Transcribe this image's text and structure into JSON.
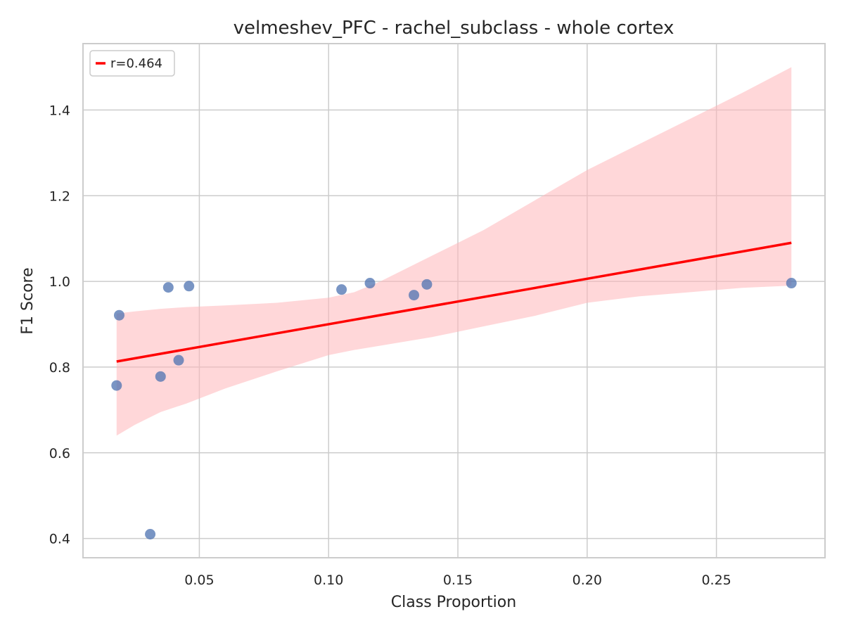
{
  "chart_data": {
    "type": "scatter",
    "title": "velmeshev_PFC - rachel_subclass - whole cortex",
    "xlabel": "Class Proportion",
    "ylabel": "F1 Score",
    "xlim": [
      0.005,
      0.292
    ],
    "ylim": [
      0.355,
      1.555
    ],
    "xticks": [
      0.05,
      0.1,
      0.15,
      0.2,
      0.25
    ],
    "xtick_labels": [
      "0.05",
      "0.10",
      "0.15",
      "0.20",
      "0.25"
    ],
    "yticks": [
      0.4,
      0.6,
      0.8,
      1.0,
      1.2,
      1.4
    ],
    "ytick_labels": [
      "0.4",
      "0.6",
      "0.8",
      "1.0",
      "1.2",
      "1.4"
    ],
    "grid": true,
    "legend": {
      "position": "top-left",
      "label": "r=0.464"
    },
    "points": [
      {
        "x": 0.018,
        "y": 0.757
      },
      {
        "x": 0.019,
        "y": 0.921
      },
      {
        "x": 0.031,
        "y": 0.41
      },
      {
        "x": 0.035,
        "y": 0.778
      },
      {
        "x": 0.038,
        "y": 0.986
      },
      {
        "x": 0.042,
        "y": 0.816
      },
      {
        "x": 0.046,
        "y": 0.989
      },
      {
        "x": 0.105,
        "y": 0.981
      },
      {
        "x": 0.116,
        "y": 0.996
      },
      {
        "x": 0.133,
        "y": 0.968
      },
      {
        "x": 0.138,
        "y": 0.993
      },
      {
        "x": 0.279,
        "y": 0.996
      }
    ],
    "regression_line": {
      "x": [
        0.018,
        0.279
      ],
      "y": [
        0.813,
        1.09
      ]
    },
    "confidence_band": {
      "x": [
        0.018,
        0.025,
        0.035,
        0.045,
        0.06,
        0.08,
        0.1,
        0.11,
        0.12,
        0.14,
        0.16,
        0.18,
        0.2,
        0.22,
        0.24,
        0.26,
        0.279
      ],
      "upper": [
        0.925,
        0.93,
        0.936,
        0.94,
        0.944,
        0.95,
        0.962,
        0.975,
        1.0,
        1.06,
        1.12,
        1.19,
        1.26,
        1.32,
        1.38,
        1.44,
        1.5
      ],
      "lower": [
        0.64,
        0.665,
        0.695,
        0.715,
        0.75,
        0.79,
        0.828,
        0.84,
        0.85,
        0.87,
        0.895,
        0.92,
        0.95,
        0.965,
        0.975,
        0.985,
        0.99
      ]
    },
    "colors": {
      "points": "#4c72b0",
      "line": "#ff0000",
      "band": "#ffb6b9",
      "grid": "#cccccc",
      "spine": "#cccccc"
    }
  }
}
